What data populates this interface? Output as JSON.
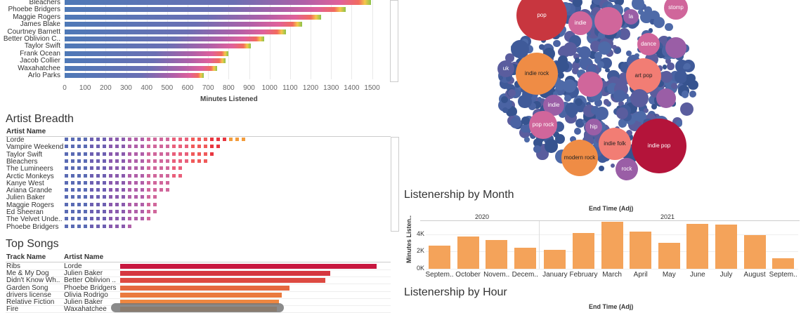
{
  "top_artists": {
    "names": [
      "Bleachers",
      "Phoebe Bridgers",
      "Maggie Rogers",
      "James Blake",
      "Courtney Barnett",
      "Better Oblivion C..",
      "Taylor Swift",
      "Frank Ocean",
      "Jacob Collier",
      "Waxahatchee",
      "Arlo Parks"
    ],
    "values": [
      1495,
      1370,
      1250,
      1160,
      1080,
      975,
      910,
      800,
      785,
      745,
      680
    ],
    "axis_title": "Minutes Listened",
    "ticks": [
      "0",
      "100",
      "200",
      "300",
      "400",
      "500",
      "600",
      "700",
      "800",
      "900",
      "1000",
      "1100",
      "1200",
      "1300",
      "1400",
      "1500"
    ]
  },
  "breadth": {
    "title": "Artist Breadth",
    "column_header": "Artist Name",
    "names": [
      "Lorde",
      "Vampire Weekend",
      "Taylor Swift",
      "Bleachers",
      "The Lumineers",
      "Arctic Monkeys",
      "Kanye West",
      "Ariana Grande",
      "Julien Baker",
      "Maggie Rogers",
      "Ed Sheeran",
      "The Velvet Unde..",
      "Phoebe Bridgers"
    ],
    "counts": [
      29,
      25,
      24,
      23,
      19,
      19,
      17,
      17,
      15,
      15,
      15,
      14,
      11
    ]
  },
  "top_songs": {
    "title": "Top Songs",
    "track_header": "Track Name",
    "artist_header": "Artist Name",
    "rows": [
      {
        "track": "Ribs",
        "artist": "Lorde",
        "value": 100
      },
      {
        "track": "Me & My Dog",
        "artist": "Julien Baker",
        "value": 82
      },
      {
        "track": "Didn't Know Wh..",
        "artist": "Better Oblivion ..",
        "value": 80
      },
      {
        "track": "Garden Song",
        "artist": "Phoebe Bridgers",
        "value": 66
      },
      {
        "track": "drivers license",
        "artist": "Olivia Rodrigo",
        "value": 63
      },
      {
        "track": "Relative Fiction",
        "artist": "Julien Baker",
        "value": 62
      },
      {
        "track": "Fire",
        "artist": "Waxahatchee",
        "value": 61
      }
    ]
  },
  "genres": {
    "labeled": [
      {
        "label": "pop",
        "color": "#c8363f"
      },
      {
        "label": "indie",
        "color": "#d0669b"
      },
      {
        "label": "la",
        "color": "#9a5ea6"
      },
      {
        "label": "stomp",
        "color": "#d0669b"
      },
      {
        "label": "dance",
        "color": "#d0669b"
      },
      {
        "label": "uk",
        "color": "#5a5d9e"
      },
      {
        "label": "indie rock",
        "color": "#ef8c45"
      },
      {
        "label": "art pop",
        "color": "#f27d74"
      },
      {
        "label": "indie",
        "color": "#9a5ea6"
      },
      {
        "label": "pop rock",
        "color": "#d0669b"
      },
      {
        "label": "hip",
        "color": "#9a5ea6"
      },
      {
        "label": "indie folk",
        "color": "#f27d74"
      },
      {
        "label": "indie pop",
        "color": "#b4143a"
      },
      {
        "label": "modern rock",
        "color": "#ef8c45"
      },
      {
        "label": "rock",
        "color": "#9a5ea6"
      }
    ]
  },
  "month": {
    "title": "Listenership by Month",
    "axis_header": "End Time (Adj)",
    "years": [
      "2020",
      "2021"
    ],
    "y_label": "Minutes Listen..",
    "y_ticks": [
      "4K",
      "2K",
      "0K"
    ],
    "ylim": [
      0,
      5500
    ],
    "categories": [
      "Septem..",
      "October",
      "Novem..",
      "Decem..",
      "January",
      "February",
      "March",
      "April",
      "May",
      "June",
      "July",
      "August",
      "Septem.."
    ],
    "values": [
      2700,
      3700,
      3300,
      2400,
      2200,
      4150,
      5450,
      4250,
      3000,
      5200,
      5100,
      3900,
      1200
    ]
  },
  "hour": {
    "title": "Listenership by Hour",
    "axis_header": "End Time (Adj)"
  },
  "colors": {
    "artist_bar": "#4e79b7",
    "month_bar": "#f4a35a",
    "song_bar": "#c8173f"
  }
}
